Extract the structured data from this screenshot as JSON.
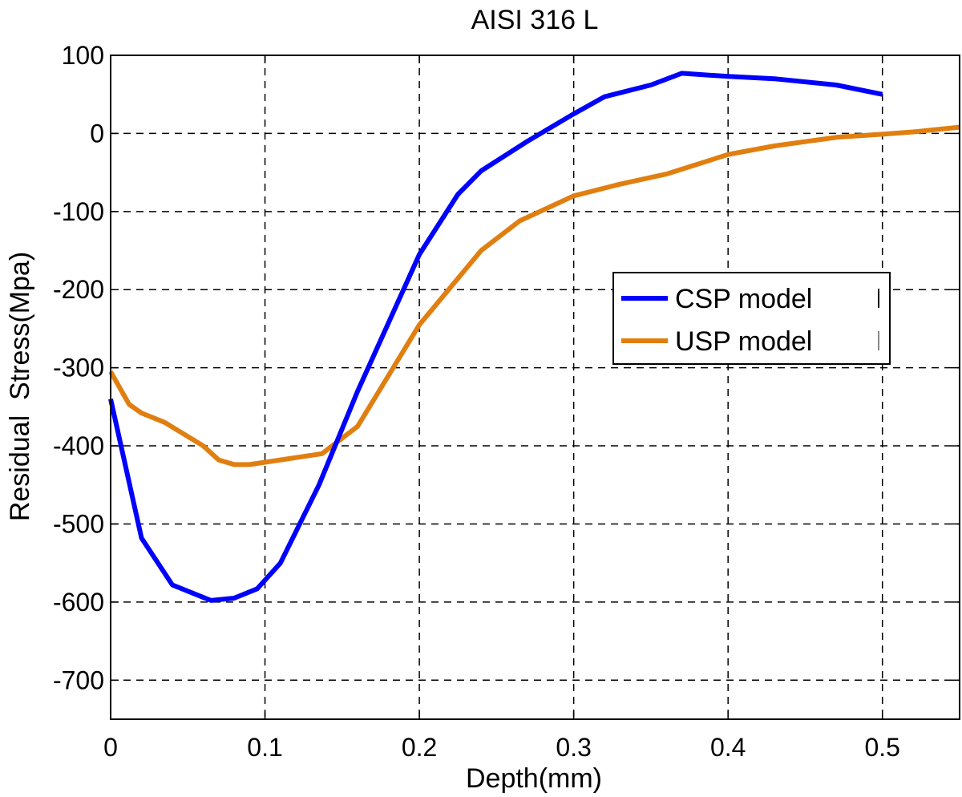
{
  "chart_data": {
    "type": "line",
    "title": "AISI 316 L",
    "xlabel": "Depth(mm)",
    "ylabel": "Residual  Stress(Mpa)",
    "xlim": [
      0,
      0.55
    ],
    "ylim": [
      -750,
      100
    ],
    "xticks": [
      0,
      0.1,
      0.2,
      0.3,
      0.4,
      0.5
    ],
    "xtick_labels": [
      "0",
      "0.1",
      "0.2",
      "0.3",
      "0.4",
      "0.5"
    ],
    "yticks": [
      100,
      0,
      -100,
      -200,
      -300,
      -400,
      -500,
      -600,
      -700
    ],
    "ytick_labels": [
      "100",
      "0",
      "-100",
      "-200",
      "-300",
      "-400",
      "-500",
      "-600",
      "-700"
    ],
    "grid": true,
    "legend_position": "right",
    "series": [
      {
        "name": "CSP model",
        "color": "#0000ff",
        "x": [
          0,
          0.02,
          0.04,
          0.065,
          0.08,
          0.095,
          0.11,
          0.135,
          0.16,
          0.2,
          0.225,
          0.24,
          0.27,
          0.3,
          0.32,
          0.35,
          0.37,
          0.4,
          0.43,
          0.47,
          0.5
        ],
        "y": [
          -340,
          -518,
          -578,
          -598,
          -595,
          -583,
          -550,
          -450,
          -330,
          -155,
          -78,
          -48,
          -10,
          25,
          47,
          62,
          77,
          73,
          70,
          62,
          50
        ]
      },
      {
        "name": "USP model",
        "color": "#e07f10",
        "x": [
          0,
          0.012,
          0.02,
          0.035,
          0.06,
          0.07,
          0.08,
          0.09,
          0.11,
          0.137,
          0.16,
          0.2,
          0.24,
          0.265,
          0.3,
          0.33,
          0.36,
          0.4,
          0.43,
          0.47,
          0.5,
          0.52,
          0.55
        ],
        "y": [
          -305,
          -347,
          -358,
          -370,
          -400,
          -418,
          -424,
          -424,
          -418,
          -410,
          -375,
          -245,
          -150,
          -112,
          -80,
          -65,
          -52,
          -27,
          -16,
          -5,
          -1,
          2,
          8
        ]
      }
    ]
  }
}
